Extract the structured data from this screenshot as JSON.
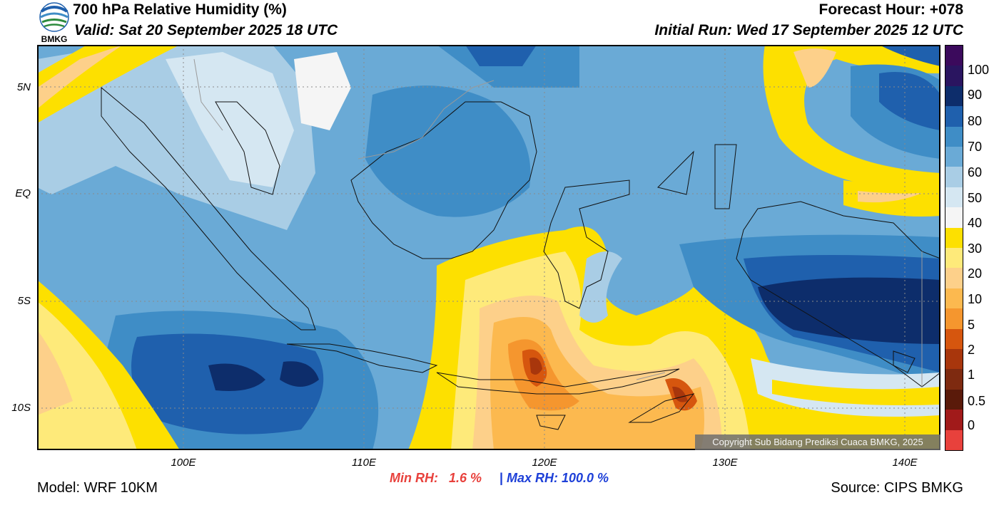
{
  "header": {
    "title": "700 hPa Relative Humidity (%)",
    "valid": "Valid: Sat 20 September 2025 18 UTC",
    "forecast_hour": "Forecast Hour: +078",
    "initial_run": "Initial Run: Wed 17 September 2025 12 UTC",
    "logo_text": "BMKG"
  },
  "map": {
    "lat_labels": [
      "5N",
      "EQ",
      "5S",
      "10S"
    ],
    "lon_labels": [
      "100E",
      "110E",
      "120E",
      "130E",
      "140E"
    ]
  },
  "colorbar": {
    "labels": [
      "100",
      "90",
      "80",
      "70",
      "60",
      "50",
      "40",
      "30",
      "20",
      "10",
      "5",
      "2",
      "1",
      "0.5",
      "0"
    ],
    "colors": [
      "#3b0a5c",
      "#2a1560",
      "#0d2d6b",
      "#1f60ad",
      "#3f8dc6",
      "#6aaad6",
      "#a9cde5",
      "#d5e7f2",
      "#f5f5f5",
      "#fde000",
      "#feea7a",
      "#fdd08a",
      "#fcb94f",
      "#f5962e",
      "#d6560e",
      "#a8360c",
      "#7e2a10",
      "#5a1a0a",
      "#a11a1a",
      "#e8413c"
    ]
  },
  "stats": {
    "min_rh": "Min RH:   1.6 %",
    "separator": "|",
    "max_rh": "Max RH: 100.0 %"
  },
  "footer": {
    "model": "Model: WRF 10KM",
    "source": "Source: CIPS BMKG",
    "copyright": "Copyright Sub Bidang Prediksi Cuaca BMKG, 2025"
  }
}
